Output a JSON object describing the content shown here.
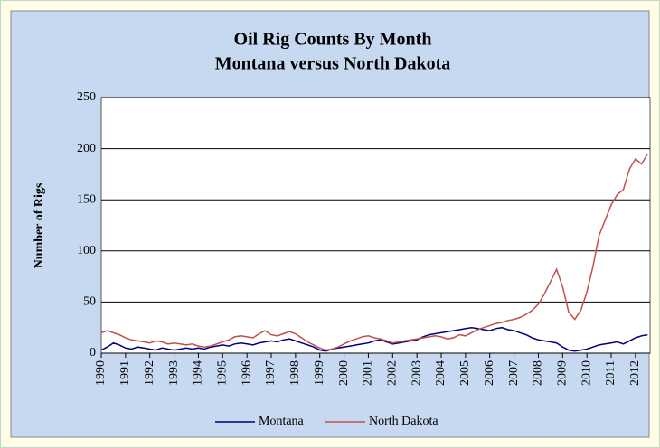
{
  "chart_data": {
    "type": "line",
    "title": "Oil Rig Counts By Month",
    "subtitle": "Montana versus North Dakota",
    "ylabel": "Number of Rigs",
    "x": [
      1990,
      1990.25,
      1990.5,
      1990.75,
      1991,
      1991.25,
      1991.5,
      1991.75,
      1992,
      1992.25,
      1992.5,
      1992.75,
      1993,
      1993.25,
      1993.5,
      1993.75,
      1994,
      1994.25,
      1994.5,
      1994.75,
      1995,
      1995.25,
      1995.5,
      1995.75,
      1996,
      1996.25,
      1996.5,
      1996.75,
      1997,
      1997.25,
      1997.5,
      1997.75,
      1998,
      1998.25,
      1998.5,
      1998.75,
      1999,
      1999.25,
      1999.5,
      1999.75,
      2000,
      2000.25,
      2000.5,
      2000.75,
      2001,
      2001.25,
      2001.5,
      2001.75,
      2002,
      2002.25,
      2002.5,
      2002.75,
      2003,
      2003.25,
      2003.5,
      2003.75,
      2004,
      2004.25,
      2004.5,
      2004.75,
      2005,
      2005.25,
      2005.5,
      2005.75,
      2006,
      2006.25,
      2006.5,
      2006.75,
      2007,
      2007.25,
      2007.5,
      2007.75,
      2008,
      2008.25,
      2008.5,
      2008.75,
      2009,
      2009.25,
      2009.5,
      2009.75,
      2010,
      2010.25,
      2010.5,
      2010.75,
      2011,
      2011.25,
      2011.5,
      2011.75,
      2012,
      2012.25,
      2012.5
    ],
    "series": [
      {
        "name": "Montana",
        "color": "#000080",
        "values": [
          3,
          6,
          10,
          8,
          5,
          4,
          6,
          5,
          4,
          3,
          5,
          4,
          3,
          4,
          5,
          4,
          5,
          4,
          6,
          7,
          8,
          7,
          9,
          10,
          9,
          8,
          10,
          11,
          12,
          11,
          13,
          14,
          12,
          10,
          8,
          6,
          3,
          2,
          4,
          5,
          6,
          7,
          8,
          9,
          10,
          12,
          13,
          11,
          9,
          10,
          11,
          12,
          13,
          16,
          18,
          19,
          20,
          21,
          22,
          23,
          24,
          25,
          24,
          23,
          22,
          24,
          25,
          23,
          22,
          20,
          18,
          15,
          13,
          12,
          11,
          10,
          6,
          3,
          2,
          3,
          4,
          6,
          8,
          9,
          10,
          11,
          9,
          12,
          15,
          17,
          18
        ]
      },
      {
        "name": "North Dakota",
        "color": "#c0504d",
        "values": [
          20,
          22,
          20,
          18,
          15,
          13,
          12,
          11,
          10,
          12,
          11,
          9,
          10,
          9,
          8,
          9,
          7,
          6,
          7,
          9,
          11,
          13,
          16,
          17,
          16,
          15,
          19,
          22,
          18,
          17,
          19,
          21,
          19,
          15,
          11,
          8,
          5,
          3,
          4,
          6,
          9,
          12,
          14,
          16,
          17,
          15,
          14,
          12,
          10,
          11,
          12,
          13,
          14,
          15,
          16,
          17,
          16,
          14,
          15,
          18,
          17,
          20,
          23,
          25,
          27,
          29,
          30,
          32,
          33,
          35,
          38,
          42,
          48,
          58,
          70,
          82,
          65,
          40,
          33,
          42,
          60,
          85,
          115,
          130,
          145,
          155,
          160,
          180,
          190,
          185,
          195
        ]
      }
    ],
    "xlim": [
      1990,
      2012.6
    ],
    "xticks": [
      1990,
      1991,
      1992,
      1993,
      1994,
      1995,
      1996,
      1997,
      1998,
      1999,
      2000,
      2001,
      2002,
      2003,
      2004,
      2005,
      2006,
      2007,
      2008,
      2009,
      2010,
      2011,
      2012
    ],
    "ylim": [
      0,
      250
    ],
    "yticks": [
      0,
      50,
      100,
      150,
      200,
      250
    ],
    "grid": true
  }
}
